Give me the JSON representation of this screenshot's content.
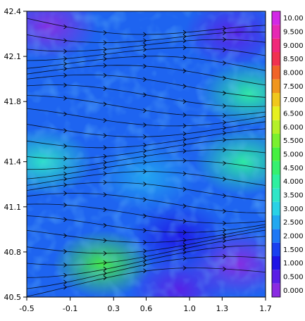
{
  "chart_data": {
    "type": "heatmap",
    "title": "",
    "xlabel": "",
    "ylabel": "",
    "xlim": [
      -0.5,
      1.7
    ],
    "ylim": [
      40.5,
      42.4
    ],
    "x_ticks": [
      "-0.5",
      "-0.1",
      "0.3",
      "0.6",
      "1.0",
      "1.3",
      "1.7"
    ],
    "x_tick_values": [
      -0.5,
      -0.1,
      0.3,
      0.6,
      1.0,
      1.3,
      1.7
    ],
    "y_ticks": [
      "40.5",
      "40.8",
      "41.1",
      "41.4",
      "41.8",
      "42.1",
      "42.4"
    ],
    "y_tick_values": [
      40.5,
      40.8,
      41.1,
      41.4,
      41.8,
      42.1,
      42.4
    ],
    "colorbar": {
      "labels": [
        "0.000",
        "0.500",
        "1.000",
        "1.500",
        "2.000",
        "2.500",
        "3.000",
        "3.500",
        "4.000",
        "4.500",
        "5.000",
        "5.500",
        "6.000",
        "6.500",
        "7.000",
        "7.500",
        "8.000",
        "8.500",
        "9.000",
        "9.500",
        "10.00"
      ],
      "colors": [
        "#8a2be2",
        "#5a1ee6",
        "#1e14e6",
        "#1a40f0",
        "#1e78f5",
        "#22a8f0",
        "#2ad2e6",
        "#2ee6c8",
        "#2ef0a0",
        "#36f070",
        "#46f040",
        "#7af030",
        "#b4f028",
        "#e6f020",
        "#f0c81e",
        "#f0961e",
        "#f06428",
        "#f03250",
        "#f0287a",
        "#e628b4",
        "#d228e6"
      ]
    },
    "streamline_direction": "west-to-east",
    "field_regions": [
      {
        "x": -0.3,
        "y": 42.3,
        "level": 0.2
      },
      {
        "x": 1.4,
        "y": 42.25,
        "level": 0.6
      },
      {
        "x": 1.55,
        "y": 41.85,
        "level": 4.2
      },
      {
        "x": 1.5,
        "y": 41.4,
        "level": 4.0
      },
      {
        "x": -0.35,
        "y": 41.4,
        "level": 3.6
      },
      {
        "x": 0.2,
        "y": 40.72,
        "level": 5.2
      },
      {
        "x": 1.45,
        "y": 40.72,
        "level": 0.2
      },
      {
        "x": 0.9,
        "y": 40.55,
        "level": 0.3
      },
      {
        "x": 0.6,
        "y": 41.3,
        "level": 2.6
      },
      {
        "x": 0.9,
        "y": 40.9,
        "level": 1.2
      }
    ]
  }
}
